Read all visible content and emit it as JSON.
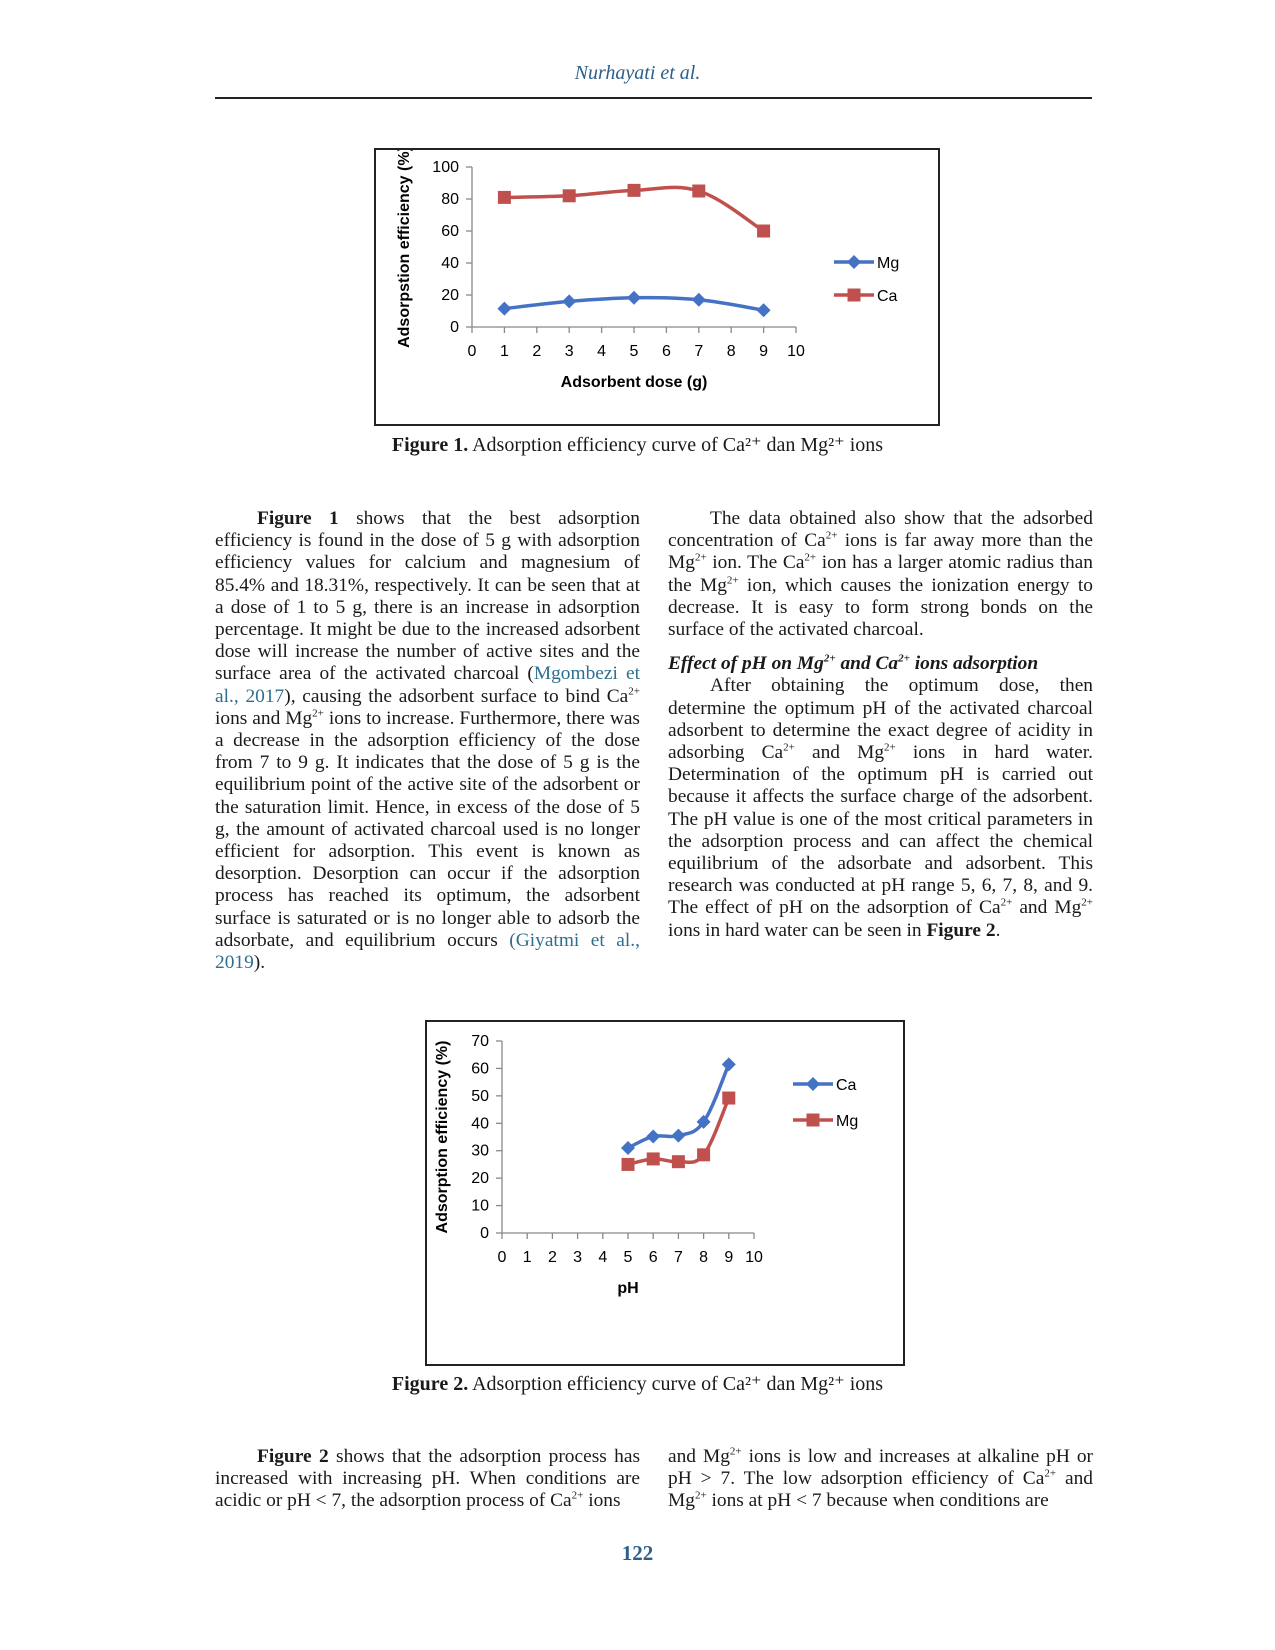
{
  "header": {
    "running_head": "Nurhayati et al."
  },
  "figure1": {
    "caption_label": "Figure 1.",
    "caption_text": " Adsorption efficiency curve of Ca²⁺ dan Mg²⁺ ions"
  },
  "figure2": {
    "caption_label": "Figure 2.",
    "caption_text": " Adsorption efficiency curve of Ca²⁺ dan Mg²⁺ ions"
  },
  "chart_data": [
    {
      "type": "line",
      "title": "",
      "xlabel": "Adsorbent dose (g)",
      "ylabel": "Adsorpstion efficiency (%)",
      "xlim": [
        0,
        10
      ],
      "ylim": [
        0,
        100
      ],
      "xticks": [
        "0",
        "1",
        "2",
        "3",
        "4",
        "5",
        "6",
        "7",
        "8",
        "9",
        "10"
      ],
      "yticks": [
        "0",
        "20",
        "40",
        "60",
        "80",
        "100"
      ],
      "legend": "right",
      "grid": false,
      "series": [
        {
          "name": "Mg",
          "color": "#4472c4",
          "marker": "diamond",
          "x": [
            1,
            3,
            5,
            7,
            9
          ],
          "y": [
            11.5,
            16,
            18.3,
            17,
            10.5
          ]
        },
        {
          "name": "Ca",
          "color": "#c0504d",
          "marker": "square",
          "x": [
            1,
            3,
            5,
            7,
            9
          ],
          "y": [
            81,
            82,
            85.4,
            85,
            60
          ]
        }
      ]
    },
    {
      "type": "line",
      "title": "",
      "xlabel": "pH",
      "ylabel": "Adsorption efficiency (%)",
      "xlim": [
        0,
        10
      ],
      "ylim": [
        0,
        70
      ],
      "xticks": [
        "0",
        "1",
        "2",
        "3",
        "4",
        "5",
        "6",
        "7",
        "8",
        "9",
        "10"
      ],
      "yticks": [
        "0",
        "10",
        "20",
        "30",
        "40",
        "50",
        "60",
        "70"
      ],
      "legend": "right",
      "grid": false,
      "series": [
        {
          "name": "Ca",
          "color": "#4472c4",
          "marker": "diamond",
          "x": [
            5,
            6,
            7,
            8,
            9
          ],
          "y": [
            31,
            35.2,
            35.5,
            40.5,
            61.5
          ]
        },
        {
          "name": "Mg",
          "color": "#c0504d",
          "marker": "square",
          "x": [
            5,
            6,
            7,
            8,
            9
          ],
          "y": [
            25,
            27,
            26,
            28.5,
            49.2
          ]
        }
      ]
    }
  ],
  "left_col_top": {
    "p1_a": "Figure 1",
    "p1_b": " shows that the best adsorption efficiency is found in the dose of 5 g with adsorption efficiency values for calcium and magnesium of 85.4% and 18.31%, respectively. It can be seen that at a dose of 1 to 5 g, there is an increase in adsorption percentage. It might be due to the increased adsorbent dose will increase the number of active sites and the surface area of the activated charcoal (",
    "cite1": "Mgombezi et al., 2017",
    "p1_c": "), causing the adsorbent surface to bind Ca",
    "sup_a": "2+",
    "p1_d": " ions and Mg",
    "sup_b": "2+",
    "p1_e": " ions to increase. Furthermore, there was a decrease in the adsorption efficiency of the dose from 7 to 9 g. It indicates that the dose of 5 g is the equilibrium point of the active site of the adsorbent or the saturation limit. Hence, in excess of the dose of 5 g, the amount of activated charcoal used is no longer efficient for adsorption. This event is known as desorption. Desorption can occur if the adsorption process has reached its optimum, the adsorbent surface is saturated or is no longer able to adsorb the adsorbate, and equilibrium occurs ",
    "cite2": "(Giyatmi et al., 2019",
    "p1_f": ")."
  },
  "right_col_top": {
    "p1_a": "The data obtained also show that the adsorbed concentration of Ca",
    "sup_a": "2+",
    "p1_b": " ions is far away more than the Mg",
    "sup_b": "2+",
    "p1_c": " ion. The Ca",
    "sup_c": "2+",
    "p1_d": " ion has a larger atomic radius than the Mg",
    "sup_d": "2+",
    "p1_e": " ion, which causes the ionization energy to decrease. It is easy to form strong bonds on the surface of the activated charcoal.",
    "subhead_a": "Effect of pH on Mg",
    "subhead_sup_a": "2+",
    "subhead_b": " and Ca",
    "subhead_sup_b": "2+",
    "subhead_c": " ions adsorption",
    "p2_a": "After obtaining the optimum dose, then determine the optimum pH of the activated charcoal adsorbent to determine the exact degree of acidity in adsorbing Ca",
    "sup_e": "2+",
    "p2_b": " and Mg",
    "sup_f": "2+",
    "p2_c": " ions in hard water. Determination of the optimum pH is carried out because it affects the surface charge of the adsorbent. The pH value is one of the most critical parameters in the adsorption process and can affect the chemical equilibrium of the adsorbate and adsorbent. This research was conducted at pH range 5, 6, 7, 8, and 9. The effect of pH on the adsorption of Ca",
    "sup_g": "2+",
    "p2_d": " and Mg",
    "sup_h": "2+",
    "p2_e": " ions in hard water can be seen in ",
    "p2_f": "Figure 2",
    "p2_g": "."
  },
  "left_col_bottom": {
    "a": "Figure 2",
    "b": " shows that the adsorption process has increased with increasing pH. When conditions are acidic or pH < 7, the adsorption process of Ca",
    "sup_a": "2+",
    "c": " ions"
  },
  "right_col_bottom": {
    "a": "and Mg",
    "sup_a": "2+",
    "b": " ions is low and increases at alkaline pH or pH > 7. The low adsorption efficiency of Ca",
    "sup_b": "2+",
    "c": " and Mg",
    "sup_c": "2+",
    "d": " ions at pH < 7 because when conditions are"
  },
  "footer": {
    "page_number": "122"
  }
}
